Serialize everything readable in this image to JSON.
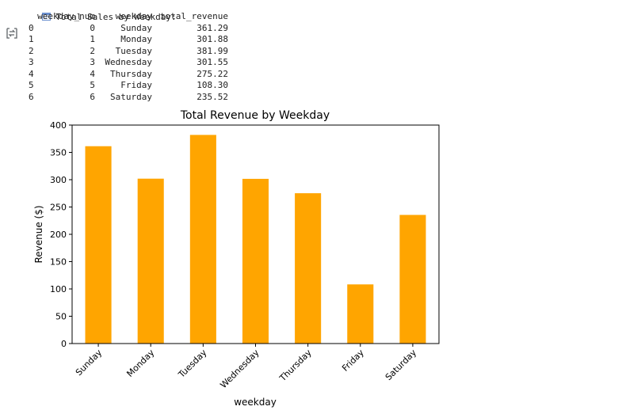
{
  "output": {
    "header_text": "Total Sales by Weekday:",
    "table": {
      "columns": [
        "weekday_num",
        "weekday",
        "total_revenue"
      ],
      "rows": [
        {
          "index": "0",
          "weekday_num": "0",
          "weekday": "Sunday",
          "total_revenue": "361.29"
        },
        {
          "index": "1",
          "weekday_num": "1",
          "weekday": "Monday",
          "total_revenue": "301.88"
        },
        {
          "index": "2",
          "weekday_num": "2",
          "weekday": "Tuesday",
          "total_revenue": "381.99"
        },
        {
          "index": "3",
          "weekday_num": "3",
          "weekday": "Wednesday",
          "total_revenue": "301.55"
        },
        {
          "index": "4",
          "weekday_num": "4",
          "weekday": "Thursday",
          "total_revenue": "275.22"
        },
        {
          "index": "5",
          "weekday_num": "5",
          "weekday": "Friday",
          "total_revenue": "108.30"
        },
        {
          "index": "6",
          "weekday_num": "6",
          "weekday": "Saturday",
          "total_revenue": "235.52"
        }
      ]
    }
  },
  "icons": {
    "output_toggle": "output-toggle-icon",
    "calendar": "calendar-icon"
  },
  "chart_data": {
    "type": "bar",
    "title": "Total Revenue by Weekday",
    "xlabel": "weekday",
    "ylabel": "Revenue ($)",
    "categories": [
      "Sunday",
      "Monday",
      "Tuesday",
      "Wednesday",
      "Thursday",
      "Friday",
      "Saturday"
    ],
    "values": [
      361.29,
      301.88,
      381.99,
      301.55,
      275.22,
      108.3,
      235.52
    ],
    "ylim": [
      0,
      400
    ],
    "yticks": [
      "0",
      "50",
      "100",
      "150",
      "200",
      "250",
      "300",
      "350",
      "400"
    ],
    "bar_color": "#FFA500",
    "grid": false,
    "legend": "none"
  }
}
